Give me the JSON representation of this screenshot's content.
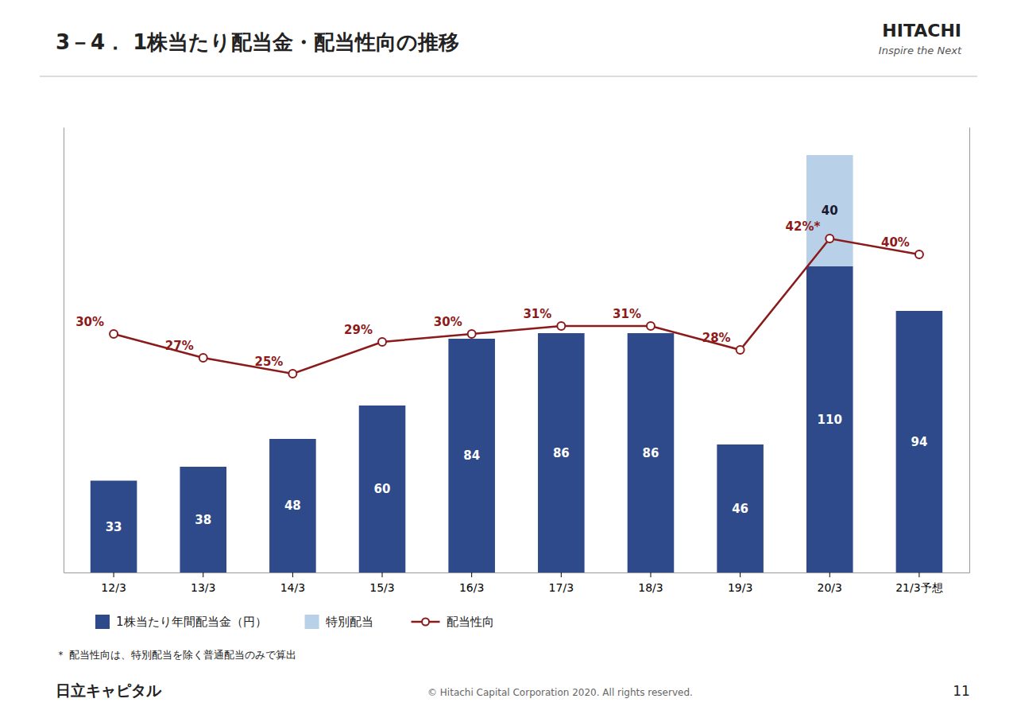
{
  "chart_data": {
    "type": "bar",
    "title": "3－4． 1株当たり配当金・配当性向の推移",
    "categories": [
      "12/3",
      "13/3",
      "14/3",
      "15/3",
      "16/3",
      "17/3",
      "18/3",
      "19/3",
      "20/3",
      "21/3予想"
    ],
    "series": [
      {
        "name": "1株当たり年間配当金（円）",
        "type": "bar",
        "color": "#2e4a8a",
        "values": [
          33,
          38,
          48,
          60,
          84,
          86,
          86,
          46,
          110,
          94
        ]
      },
      {
        "name": "特別配当",
        "type": "bar",
        "color": "#b8d0e8",
        "values": [
          0,
          0,
          0,
          0,
          0,
          0,
          0,
          0,
          40,
          0
        ]
      },
      {
        "name": "配当性向",
        "type": "line",
        "axis": "y2",
        "color": "#8b1a1a",
        "marker": "circle",
        "values": [
          30,
          27,
          25,
          29,
          30,
          31,
          31,
          28,
          42,
          40
        ],
        "value_labels": [
          "30%",
          "27%",
          "25%",
          "29%",
          "30%",
          "31%",
          "31%",
          "28%",
          "42%*",
          "40%"
        ]
      }
    ],
    "stacked": true,
    "data_labels": true,
    "ylim": [
      0,
      160
    ],
    "y2lim": [
      0,
      56
    ],
    "tick_labels": "x",
    "grid": false,
    "legend": "bottom",
    "note": "＊ 配当性向は、特別配当を除く普通配当のみで算出"
  },
  "logo": {
    "name": "HITACHI",
    "tagline": "Inspire the Next"
  },
  "footer": {
    "company": "日立キャピタル",
    "copyright": "© Hitachi Capital Corporation  2020. All rights reserved.",
    "page": "11"
  }
}
